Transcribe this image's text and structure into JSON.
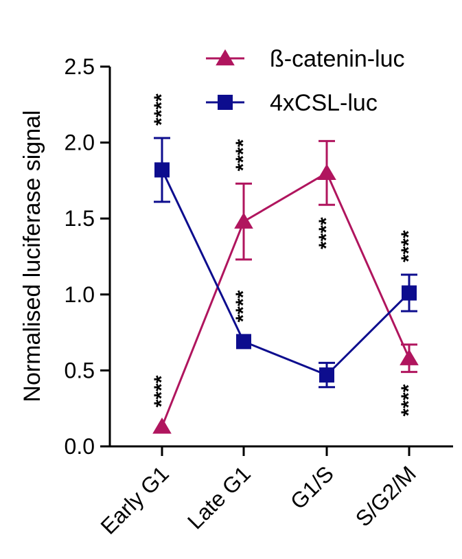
{
  "chart_data": {
    "type": "line",
    "title": "",
    "xlabel": "",
    "ylabel": "Normalised luciferase signal",
    "categories": [
      "Early G1",
      "Late G1",
      "G1/S",
      "S/G2/M"
    ],
    "ylim": [
      0,
      2.5
    ],
    "yticks": [
      "0.0",
      "0.5",
      "1.0",
      "1.5",
      "2.0",
      "2.5"
    ],
    "grid": false,
    "legend_position": "top-right",
    "series": [
      {
        "name": "ß-catenin-luc",
        "marker": "triangle",
        "color": "#b0155e",
        "values": [
          0.13,
          1.48,
          1.8,
          0.58
        ],
        "errors": [
          0.0,
          0.25,
          0.21,
          0.09
        ],
        "significance": [
          "****",
          "****",
          "****",
          "****"
        ],
        "significance_side": [
          "above",
          "above",
          "below",
          "below"
        ]
      },
      {
        "name": "4xCSL-luc",
        "marker": "square",
        "color": "#0d0d8e",
        "values": [
          1.82,
          0.69,
          0.47,
          1.01
        ],
        "errors": [
          0.21,
          0.0,
          0.08,
          0.12
        ],
        "significance": [
          "****",
          "****",
          "",
          "****"
        ],
        "significance_side": [
          "above",
          "above",
          "",
          "above"
        ]
      }
    ]
  }
}
